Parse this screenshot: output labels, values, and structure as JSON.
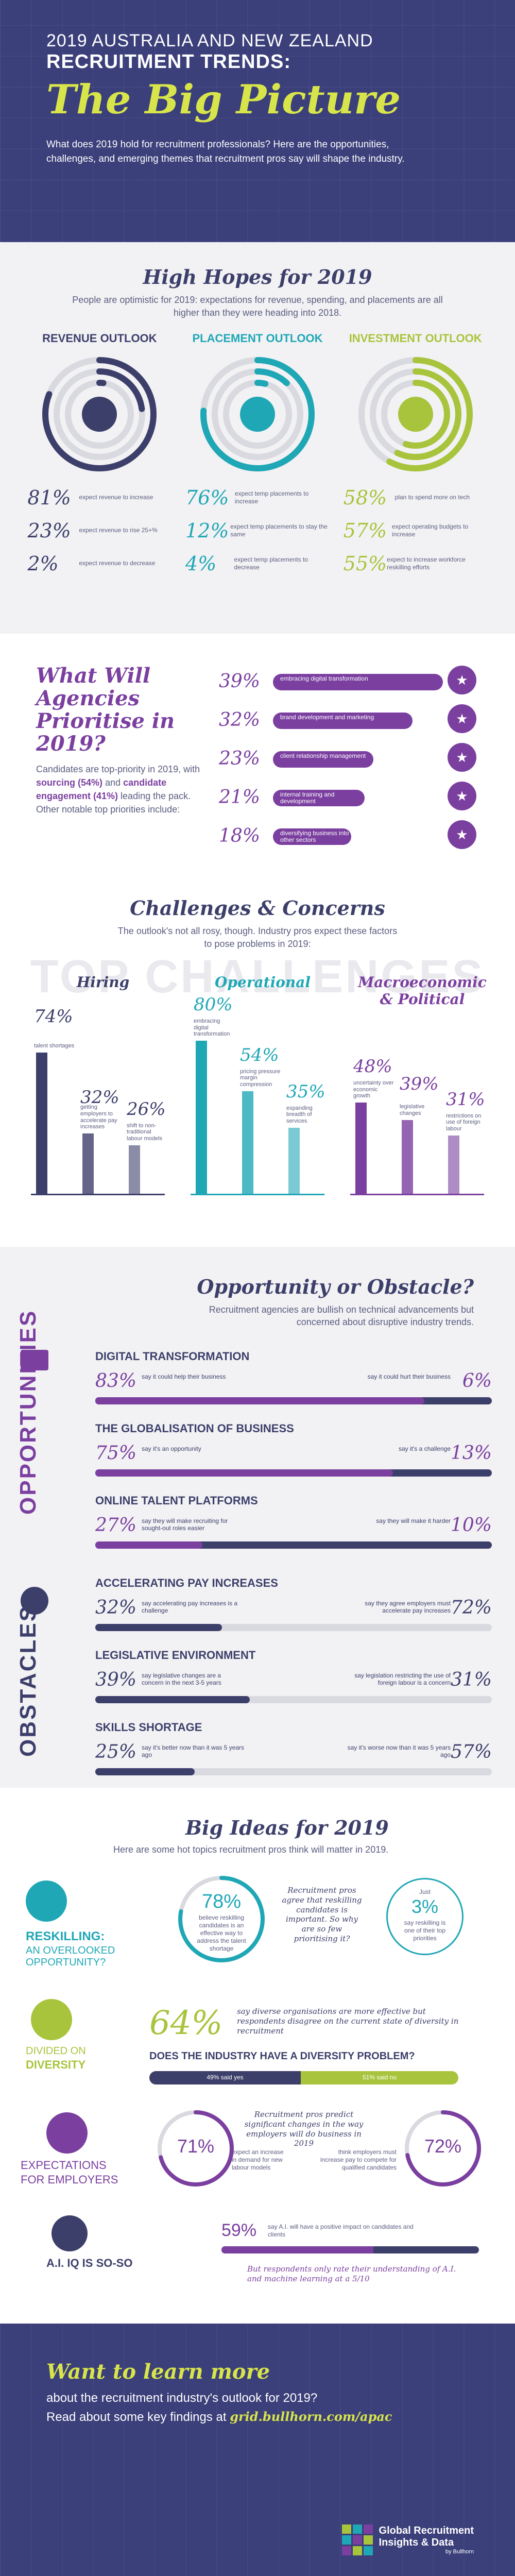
{
  "header": {
    "line1": "2019 AUSTRALIA AND NEW ZEALAND",
    "line2": "RECRUITMENT TRENDS:",
    "title": "The Big Picture",
    "intro": "What does 2019 hold for recruitment professionals? Here are the opportunities, challenges, and emerging themes that recruitment pros say will shape the industry."
  },
  "hopes": {
    "title": "High Hopes for 2019",
    "subtitle": "People are optimistic for 2019: expectations for revenue, spending, and placements are all higher than they were heading into 2018.",
    "outlooks": [
      {
        "name": "REVENUE OUTLOOK",
        "icon": "dollar-icon",
        "color": "#3d3f6b",
        "stats": [
          {
            "n": "81%",
            "t": "expect revenue to increase"
          },
          {
            "n": "23%",
            "t": "expect revenue to rise 25+%"
          },
          {
            "n": "2%",
            "t": "expect revenue to decrease"
          }
        ],
        "fractions": [
          0.81,
          0.23,
          0.02
        ]
      },
      {
        "name": "PLACEMENT OUTLOOK",
        "icon": "person-icon",
        "color": "#1fa7b6",
        "stats": [
          {
            "n": "76%",
            "t": "expect temp placements to increase"
          },
          {
            "n": "12%",
            "t": "expect temp placements to stay the same"
          },
          {
            "n": "4%",
            "t": "expect temp placements to decrease"
          }
        ],
        "fractions": [
          0.76,
          0.12,
          0.04
        ]
      },
      {
        "name": "INVESTMENT OUTLOOK",
        "icon": "money-icon",
        "color": "#a8c43c",
        "stats": [
          {
            "n": "58%",
            "t": "plan to spend more on tech"
          },
          {
            "n": "57%",
            "t": "expect operating budgets to increase"
          },
          {
            "n": "55%",
            "t": "expect to increase workforce reskilling efforts"
          }
        ],
        "fractions": [
          0.58,
          0.57,
          0.55
        ]
      }
    ]
  },
  "agencies": {
    "title": "What Will Agencies Prioritise in 2019?",
    "body_a": "Candidates are top-priority in 2019, with ",
    "body_b": "sourcing (54%)",
    "body_c": " and ",
    "body_d": "candidate engagement (41%)",
    "body_e": " leading the pack. Other notable top priorities include:",
    "items": [
      {
        "pct": "39%",
        "label": "embracing digital transformation",
        "value": 39
      },
      {
        "pct": "32%",
        "label": "brand development and marketing",
        "value": 32
      },
      {
        "pct": "23%",
        "label": "client relationship management",
        "value": 23
      },
      {
        "pct": "21%",
        "label": "internal training and development",
        "value": 21
      },
      {
        "pct": "18%",
        "label": "diversifying business into other sectors",
        "value": 18
      }
    ]
  },
  "challenges": {
    "title": "Challenges & Concerns",
    "subtitle": "The outlook's not all rosy, though. Industry pros expect these factors to pose problems in 2019:",
    "watermark": "TOP CHALLENGES",
    "groups": [
      {
        "name": "Hiring",
        "color": "#3d3f6b",
        "items": [
          {
            "n": "74%",
            "t": "talent shortages",
            "v": 74
          },
          {
            "n": "32%",
            "t": "getting employers to accelerate pay increases",
            "v": 32
          },
          {
            "n": "26%",
            "t": "shift to non-traditional labour models",
            "v": 26
          }
        ]
      },
      {
        "name": "Operational",
        "color": "#1fa7b6",
        "items": [
          {
            "n": "80%",
            "t": "embracing digital transformation",
            "v": 80
          },
          {
            "n": "54%",
            "t": "pricing pressure margin compression",
            "v": 54
          },
          {
            "n": "35%",
            "t": "expanding breadth of services",
            "v": 35
          }
        ]
      },
      {
        "name": "Macroeconomic & Political",
        "color": "#7b3fa0",
        "items": [
          {
            "n": "48%",
            "t": "uncertainty over economic growth",
            "v": 48
          },
          {
            "n": "39%",
            "t": "legislative changes",
            "v": 39
          },
          {
            "n": "31%",
            "t": "restrictions on use of foreign labour",
            "v": 31
          }
        ]
      }
    ]
  },
  "opp": {
    "title": "Opportunity or Obstacle?",
    "subtitle": "Recruitment agencies are bullish on technical advancements but concerned about disruptive industry trends.",
    "opp_label": "OPPORTUNITIES",
    "obs_label": "OBSTACLES",
    "opportunities": [
      {
        "h": "DIGITAL TRANSFORMATION",
        "l": "83%",
        "lt": "say it could help their business",
        "r": "6%",
        "rt": "say it could hurt their business",
        "lv": 83
      },
      {
        "h": "THE GLOBALISATION OF BUSINESS",
        "l": "75%",
        "lt": "say it's an opportunity",
        "r": "13%",
        "rt": "say it's a challenge",
        "lv": 75
      },
      {
        "h": "ONLINE TALENT PLATFORMS",
        "l": "27%",
        "lt": "say they will make recruiting for sought-out roles easier",
        "r": "10%",
        "rt": "say they will make it harder",
        "lv": 27
      }
    ],
    "obstacles": [
      {
        "h": "ACCELERATING PAY INCREASES",
        "l": "32%",
        "lt": "say accelerating pay increases is a challenge",
        "r": "72%",
        "rt": "say they agree employers must accelerate pay increases",
        "lv": 32
      },
      {
        "h": "LEGISLATIVE ENVIRONMENT",
        "l": "39%",
        "lt": "say legislative changes are a concern in the next 3-5 years",
        "r": "31%",
        "rt": "say legislation restricting the use of foreign labour is a concern",
        "lv": 39
      },
      {
        "h": "SKILLS SHORTAGE",
        "l": "25%",
        "lt": "say it's better now than it was 5 years ago",
        "r": "57%",
        "rt": "say it's worse now than it was 5 years ago",
        "lv": 25
      }
    ]
  },
  "ideas": {
    "title": "Big Ideas for 2019",
    "subtitle": "Here are some hot topics recruitment pros think will matter in 2019.",
    "reskill": {
      "h1": "RESKILLING:",
      "h2": "AN OVERLOOKED OPPORTUNITY?",
      "pct": "78%",
      "txt": "believe reskilling candidates is an effective way to address the talent shortage",
      "quote": "Recruitment pros agree that reskilling candidates is important. So why are so few prioritising it?",
      "pct2": "3%",
      "pre2": "Just",
      "txt2": "say reskilling is one of their top priorities",
      "value": 78
    },
    "diversity": {
      "h1": "DIVIDED ON",
      "h2": "DIVERSITY",
      "pct": "64%",
      "txt": "say diverse organisations are more effective but respondents disagree on the current state of diversity in recruitment",
      "q": "DOES THE INDUSTRY HAVE A DIVERSITY PROBLEM?",
      "yes": "49% said yes",
      "no": "51% said no",
      "yes_v": 49
    },
    "employers": {
      "h1": "EXPECTATIONS",
      "h2": "FOR EMPLOYERS",
      "l": "71%",
      "lt": "expect an increase in demand for new labour models",
      "q": "Recruitment pros predict significant changes in the way employers will do business in 2019",
      "r": "72%",
      "rt": "think employers must increase pay to compete for qualified candidates",
      "lv": 71,
      "rv": 72
    },
    "ai": {
      "h": "A.I. IQ IS SO-SO",
      "pct": "59%",
      "txt": "say A.I. will have a positive impact on candidates and clients",
      "q": "But respondents only rate their understanding of A.I. and machine learning at a 5/10",
      "value": 59
    }
  },
  "footer": {
    "title": "Want to learn more",
    "line1": "about the recruitment industry's outlook for 2019?",
    "line2a": "Read about some key findings at ",
    "link": "grid.bullhorn.com/apac",
    "logo1": "Global Recruitment",
    "logo2": "Insights & Data",
    "logo3": "by Bullhorn"
  }
}
